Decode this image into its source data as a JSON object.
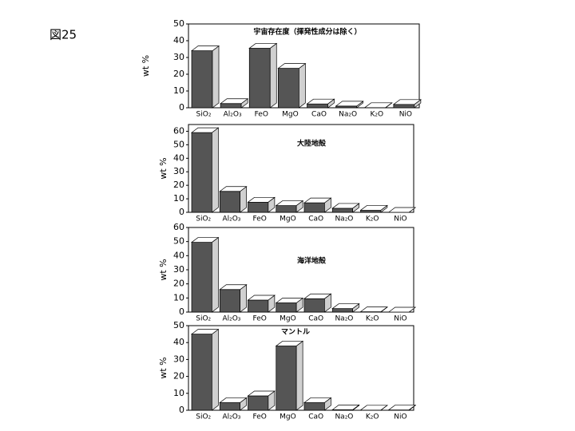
{
  "figure_label": "図25",
  "chart_data": [
    {
      "type": "bar3d",
      "title": "宇宙存在度（揮発性成分は除く）",
      "y_label": "wt %",
      "categories": [
        "SiO₂",
        "Al₂O₃",
        "FeO",
        "MgO",
        "CaO",
        "Na₂O",
        "K₂O",
        "NiO"
      ],
      "values": [
        34,
        2.5,
        35.5,
        23.5,
        2.3,
        1,
        0.1,
        2
      ],
      "color": "#555555",
      "ylim": [
        0,
        50
      ],
      "yticks": [
        0,
        10,
        20,
        30,
        40,
        50
      ],
      "grid": false
    },
    {
      "type": "bar3d",
      "title": "大陸地殻",
      "y_label": "wt %",
      "categories": [
        "SiO₂",
        "Al₂O₃",
        "FeO",
        "MgO",
        "CaO",
        "Na₂O",
        "K₂O",
        "NiO"
      ],
      "values": [
        59,
        15.5,
        7.5,
        5,
        7,
        3,
        1.5,
        0
      ],
      "color": "#555555",
      "ylim": [
        0,
        65
      ],
      "yticks": [
        0,
        10,
        20,
        30,
        40,
        50,
        60
      ],
      "grid": false
    },
    {
      "type": "bar3d",
      "title": "海洋地殻",
      "y_label": "wt %",
      "categories": [
        "SiO₂",
        "Al₂O₃",
        "FeO",
        "MgO",
        "CaO",
        "Na₂O",
        "K₂O",
        "NiO"
      ],
      "values": [
        49.5,
        16,
        8.5,
        6.5,
        9.5,
        2.5,
        0.2,
        0
      ],
      "color": "#555555",
      "ylim": [
        0,
        60
      ],
      "yticks": [
        0,
        10,
        20,
        30,
        40,
        50,
        60
      ],
      "grid": false
    },
    {
      "type": "bar3d",
      "title": "マントル",
      "y_label": "wt %",
      "categories": [
        "SiO₂",
        "Al₂O₃",
        "FeO",
        "MgO",
        "CaO",
        "Na₂O",
        "K₂O",
        "NiO"
      ],
      "values": [
        45,
        4.5,
        8.5,
        38,
        4.5,
        0.3,
        0.1,
        0.2
      ],
      "color": "#555555",
      "ylim": [
        0,
        50
      ],
      "yticks": [
        0,
        10,
        20,
        30,
        40,
        50
      ],
      "grid": false
    }
  ]
}
